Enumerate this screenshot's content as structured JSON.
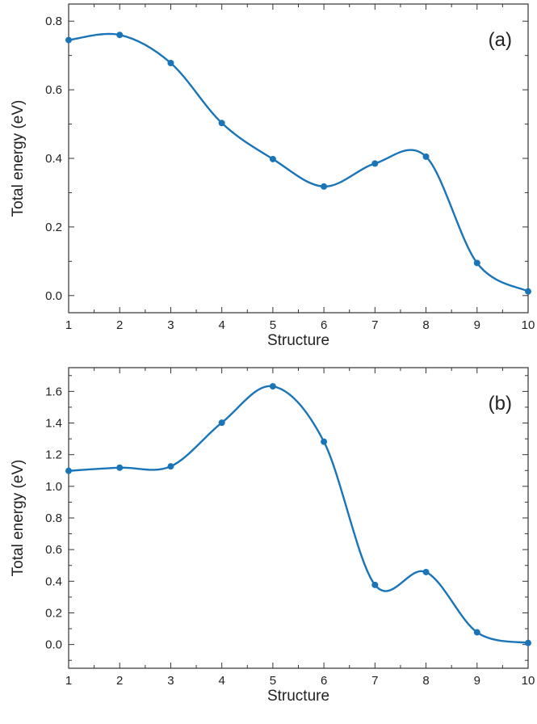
{
  "chart_data": [
    {
      "type": "line",
      "panel_label": "(a)",
      "xlabel": "Structure",
      "ylabel": "Total energy (eV)",
      "xlim": [
        1,
        10
      ],
      "ylim": [
        -0.05,
        0.85
      ],
      "x_ticks": [
        1,
        2,
        3,
        4,
        5,
        6,
        7,
        8,
        9,
        10
      ],
      "y_ticks": [
        "0.0",
        "0.2",
        "0.4",
        "0.6",
        "0.8"
      ],
      "x": [
        1,
        2,
        3,
        4,
        5,
        6,
        7,
        8,
        9,
        10
      ],
      "series": [
        {
          "values": [
            0.745,
            0.76,
            0.678,
            0.503,
            0.398,
            0.318,
            0.385,
            0.405,
            0.095,
            0.012
          ]
        }
      ],
      "color": "#1a75b8",
      "grid": false
    },
    {
      "type": "line",
      "panel_label": "(b)",
      "xlabel": "Structure",
      "ylabel": "Total energy (eV)",
      "xlim": [
        1,
        10
      ],
      "ylim": [
        -0.15,
        1.75
      ],
      "x_ticks": [
        1,
        2,
        3,
        4,
        5,
        6,
        7,
        8,
        9,
        10
      ],
      "y_ticks": [
        "0.0",
        "0.2",
        "0.4",
        "0.6",
        "0.8",
        "1.0",
        "1.2",
        "1.4",
        "1.6"
      ],
      "x": [
        1,
        2,
        3,
        4,
        5,
        6,
        7,
        8,
        9,
        10
      ],
      "series": [
        {
          "values": [
            1.098,
            1.118,
            1.126,
            1.402,
            1.632,
            1.282,
            0.377,
            0.458,
            0.077,
            0.01
          ]
        }
      ],
      "color": "#1a75b8",
      "grid": false
    }
  ]
}
